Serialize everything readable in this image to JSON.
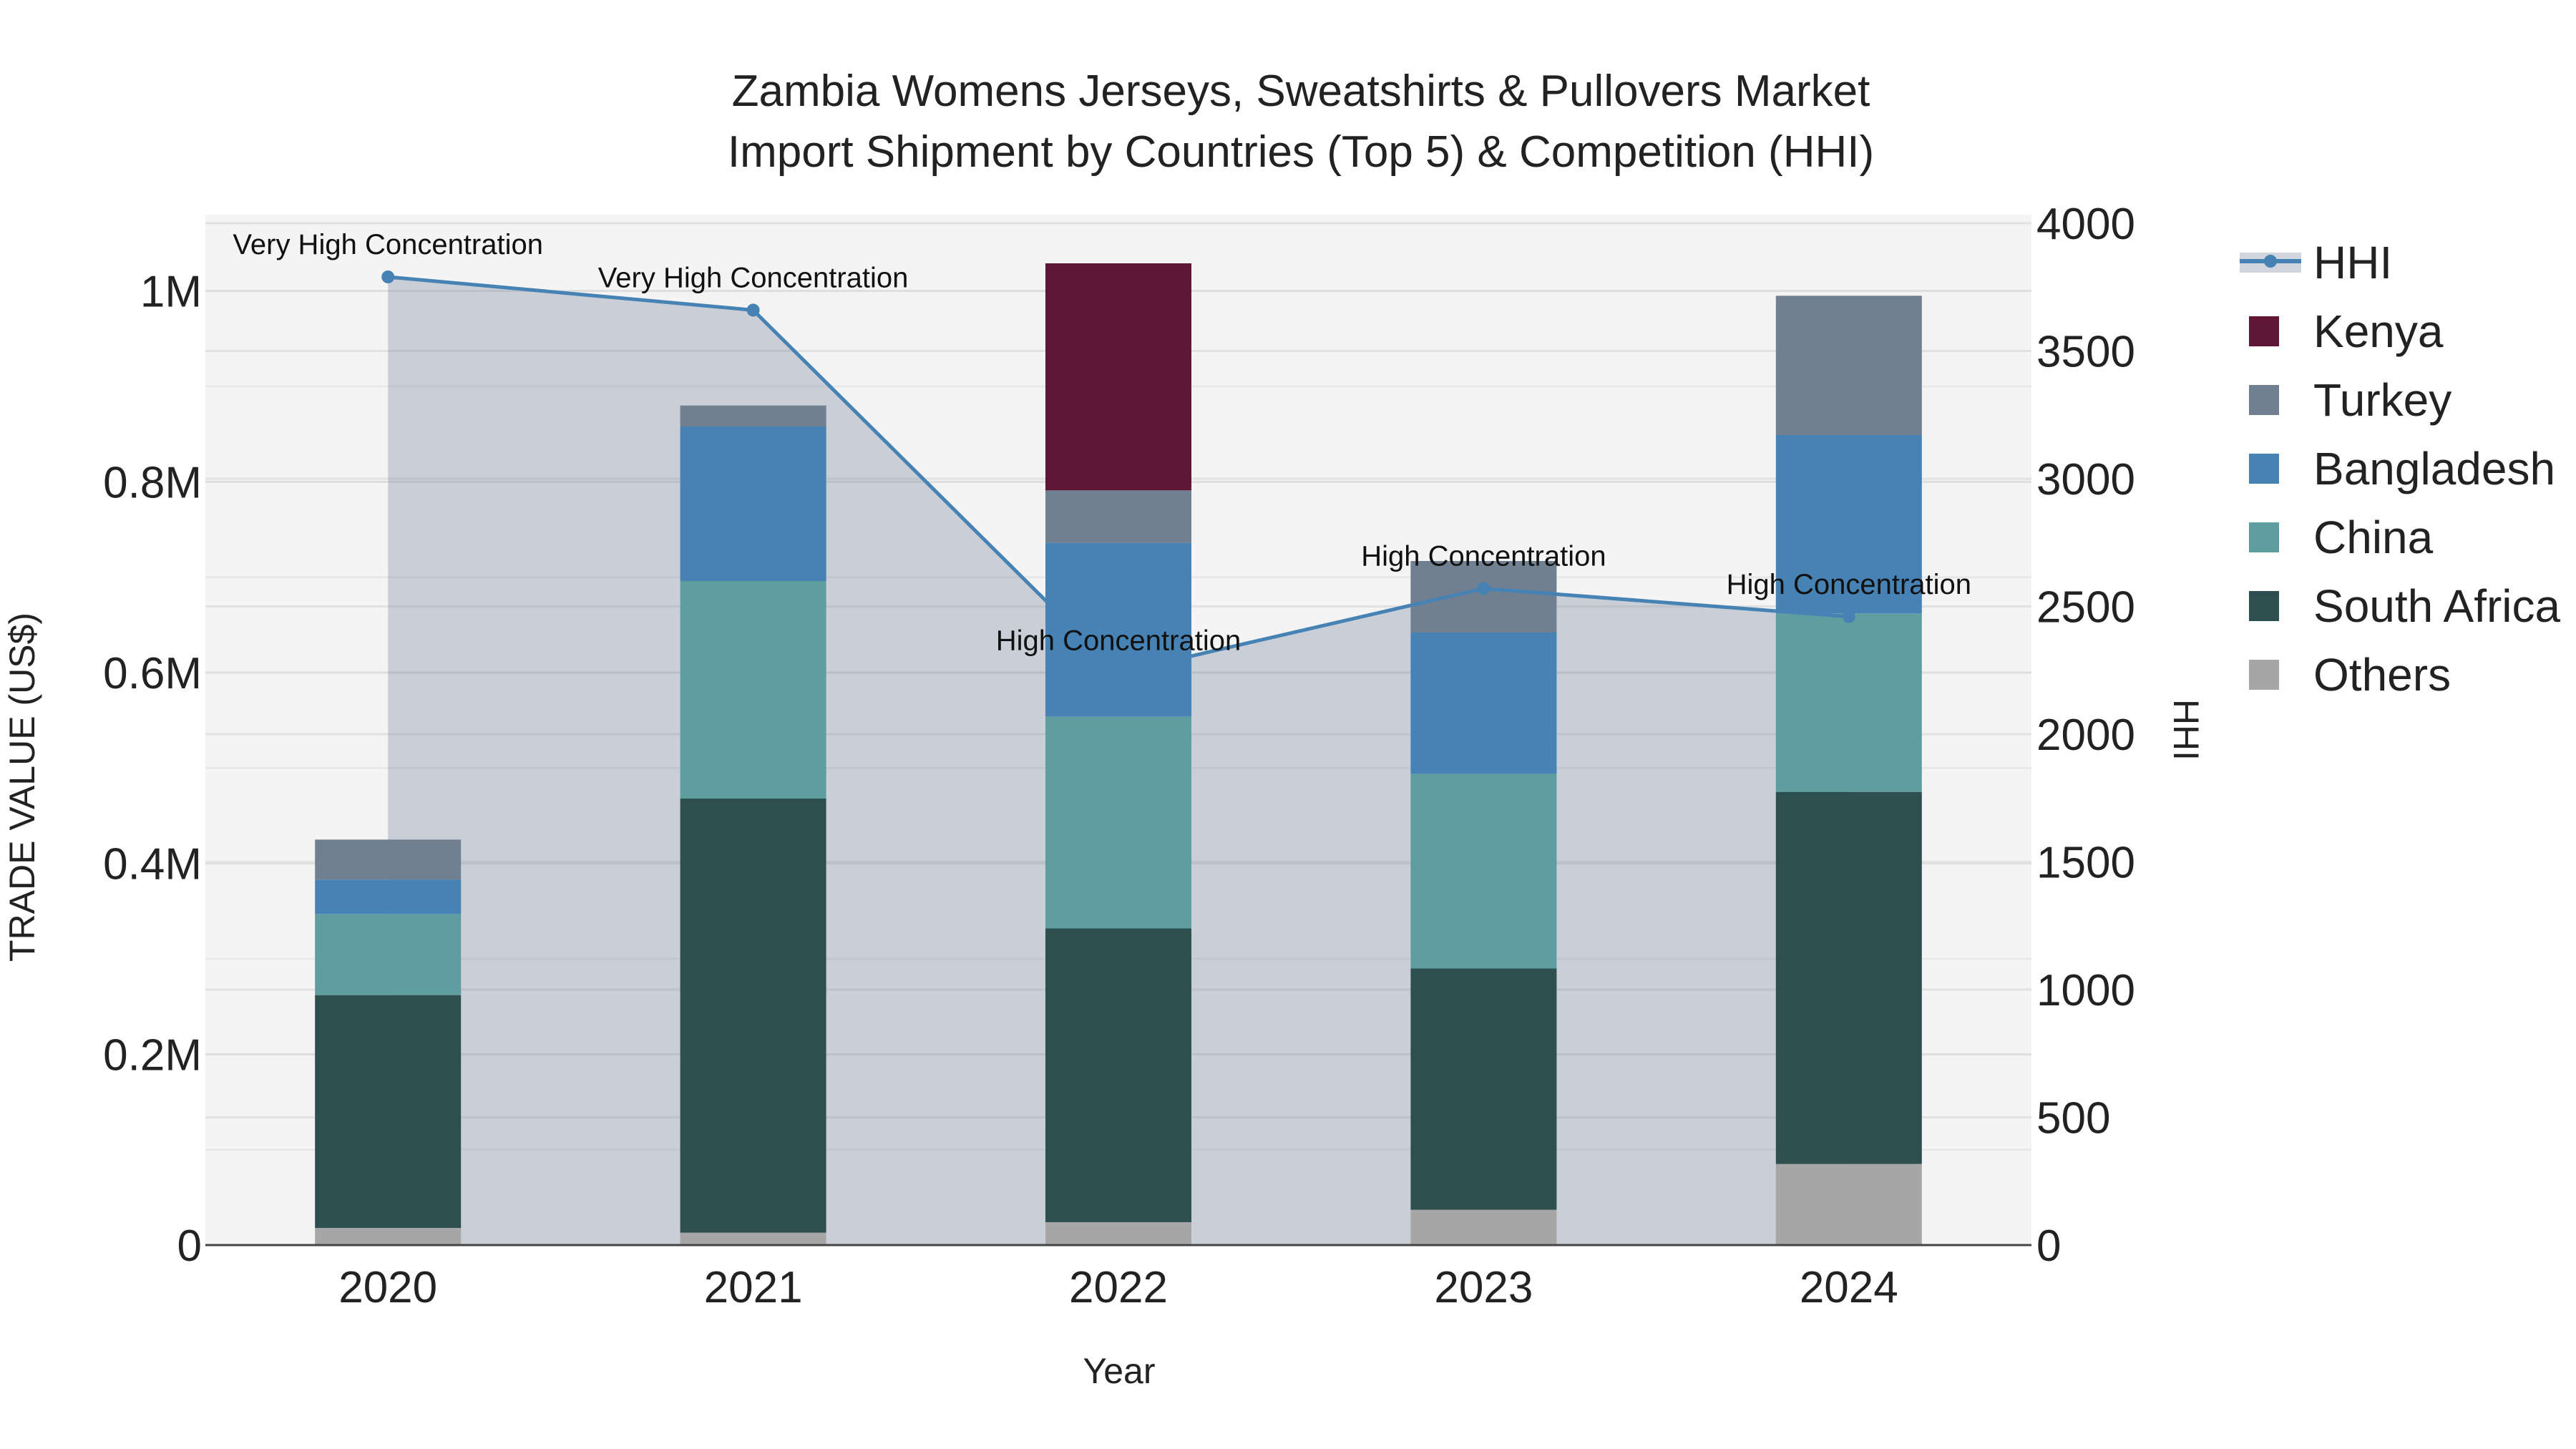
{
  "chart_data": {
    "type": "bar",
    "stacked": true,
    "title_line1": "Zambia Womens Jerseys, Sweatshirts & Pullovers Market",
    "title_line2": "Import Shipment by Countries (Top 5) & Competition (HHI)",
    "xlabel": "Year",
    "ylabel": "TRADE VALUE (US$)",
    "y2label": "HHI",
    "categories": [
      "2020",
      "2021",
      "2022",
      "2023",
      "2024"
    ],
    "ylim": [
      0,
      1080000
    ],
    "y2lim": [
      0,
      4000
    ],
    "yticks": [
      {
        "value": 0,
        "label": "0"
      },
      {
        "value": 200000,
        "label": "0.2M"
      },
      {
        "value": 400000,
        "label": "0.4M"
      },
      {
        "value": 600000,
        "label": "0.6M"
      },
      {
        "value": 800000,
        "label": "0.8M"
      },
      {
        "value": 1000000,
        "label": "1M"
      }
    ],
    "y2ticks": [
      {
        "value": 0,
        "label": "0"
      },
      {
        "value": 500,
        "label": "500"
      },
      {
        "value": 1000,
        "label": "1000"
      },
      {
        "value": 1500,
        "label": "1500"
      },
      {
        "value": 2000,
        "label": "2000"
      },
      {
        "value": 2500,
        "label": "2500"
      },
      {
        "value": 3000,
        "label": "3000"
      },
      {
        "value": 3500,
        "label": "3500"
      },
      {
        "value": 4000,
        "label": "4000"
      }
    ],
    "series": [
      {
        "name": "Others",
        "color": "#a6a6a6",
        "values": [
          18000,
          13000,
          24000,
          37000,
          85000
        ]
      },
      {
        "name": "South Africa",
        "color": "#2e4f4f",
        "values": [
          244000,
          455000,
          308000,
          253000,
          390000
        ]
      },
      {
        "name": "China",
        "color": "#5f9ea0",
        "values": [
          85000,
          228000,
          222000,
          204000,
          187000
        ]
      },
      {
        "name": "Bangladesh",
        "color": "#4682b4",
        "values": [
          36000,
          162000,
          182000,
          148000,
          187000
        ]
      },
      {
        "name": "Turkey",
        "color": "#708090",
        "values": [
          42000,
          22000,
          55000,
          75000,
          146000
        ]
      },
      {
        "name": "Kenya",
        "color": "#601635",
        "values": [
          0,
          0,
          238000,
          0,
          0
        ]
      }
    ],
    "hhi": {
      "name": "HHI",
      "color": "#4682b4",
      "values": [
        3790,
        3660,
        2240,
        2570,
        2460
      ],
      "annotations": [
        "Very High Concentration",
        "Very High Concentration",
        "High Concentration",
        "High Concentration",
        "High Concentration"
      ]
    },
    "legend": [
      "HHI",
      "Kenya",
      "Turkey",
      "Bangladesh",
      "China",
      "South Africa",
      "Others"
    ]
  }
}
